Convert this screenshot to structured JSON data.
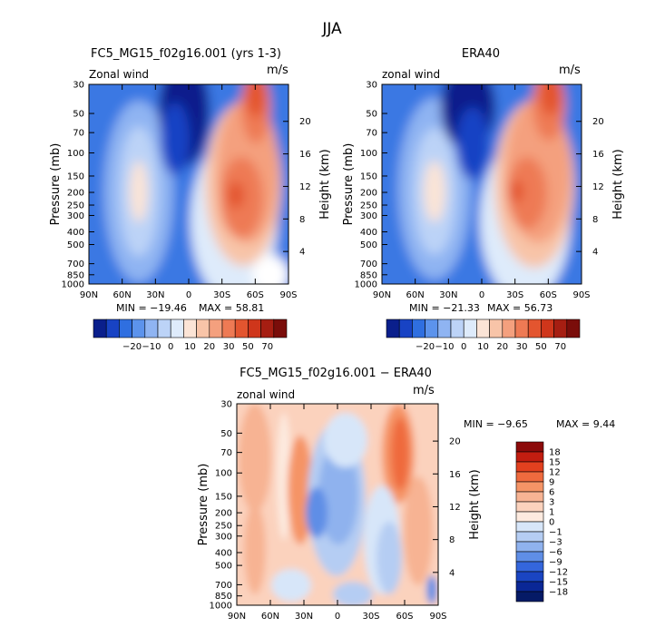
{
  "page": {
    "title": "JJA"
  },
  "chart_data": [
    {
      "type": "heatmap",
      "title": "FC5_MG15_f02g16.001 (yrs 1-3)",
      "left_label": "Zonal wind",
      "units": "m/s",
      "ylabel": "Pressure (mb)",
      "ylabel_right": "Height (km)",
      "x_ticks": [
        "90N",
        "60N",
        "30N",
        "0",
        "30S",
        "60S",
        "90S"
      ],
      "y_ticks": [
        "30",
        "50",
        "70",
        "100",
        "150",
        "200",
        "250",
        "300",
        "400",
        "500",
        "700",
        "850",
        "1000"
      ],
      "right_ticks": [
        "20",
        "16",
        "12",
        "8",
        "4"
      ],
      "min_text": "MIN = −19.46",
      "max_text": "MAX =  58.81",
      "colorbar_levels": [
        "−20",
        "−10",
        "0",
        "10",
        "20",
        "30",
        "50",
        "70"
      ],
      "colors": [
        "#0a1f8c",
        "#1843c4",
        "#2f6fe0",
        "#5c93ec",
        "#8fb4f2",
        "#bcd3f7",
        "#deebfb",
        "#fbe4d6",
        "#f8c4a8",
        "#f4a07e",
        "#ee7a54",
        "#e3552f",
        "#cf361b",
        "#a61e12",
        "#7a0d0a"
      ]
    },
    {
      "type": "heatmap",
      "title": "ERA40",
      "left_label": "zonal wind",
      "units": "m/s",
      "ylabel": "Pressure (mb)",
      "ylabel_right": "Height (km)",
      "x_ticks": [
        "90N",
        "60N",
        "30N",
        "0",
        "30S",
        "60S",
        "90S"
      ],
      "y_ticks": [
        "30",
        "50",
        "70",
        "100",
        "150",
        "200",
        "250",
        "300",
        "400",
        "500",
        "700",
        "850",
        "1000"
      ],
      "right_ticks": [
        "20",
        "16",
        "12",
        "8",
        "4"
      ],
      "min_text": "MIN = −21.33",
      "max_text": "MAX =  56.73",
      "colorbar_levels": [
        "−20",
        "−10",
        "0",
        "10",
        "20",
        "30",
        "50",
        "70"
      ]
    },
    {
      "type": "heatmap",
      "title": "FC5_MG15_f02g16.001 − ERA40",
      "left_label": "zonal wind",
      "units": "m/s",
      "ylabel": "Pressure (mb)",
      "ylabel_right": "Height (km)",
      "x_ticks": [
        "90N",
        "60N",
        "30N",
        "0",
        "30S",
        "60S",
        "90S"
      ],
      "y_ticks": [
        "30",
        "50",
        "70",
        "100",
        "150",
        "200",
        "250",
        "300",
        "400",
        "500",
        "700",
        "850",
        "1000"
      ],
      "right_ticks": [
        "20",
        "16",
        "12",
        "8",
        "4"
      ],
      "min_text": "MIN =   −9.65",
      "max_text": "MAX =   9.44",
      "colorbar_levels": [
        "18",
        "15",
        "12",
        "9",
        "6",
        "3",
        "1",
        "0",
        "−1",
        "−3",
        "−6",
        "−9",
        "−12",
        "−15",
        "−18"
      ],
      "colors": [
        "#8c0a0a",
        "#c21d10",
        "#e2401f",
        "#ef6a3e",
        "#f59466",
        "#f7b393",
        "#fbd2bd",
        "#fdeadf",
        "#d7e6f9",
        "#b5cdf3",
        "#8fb2ee",
        "#5f8ee6",
        "#3466dc",
        "#1a45c2",
        "#0a2796",
        "#051a66"
      ]
    }
  ]
}
